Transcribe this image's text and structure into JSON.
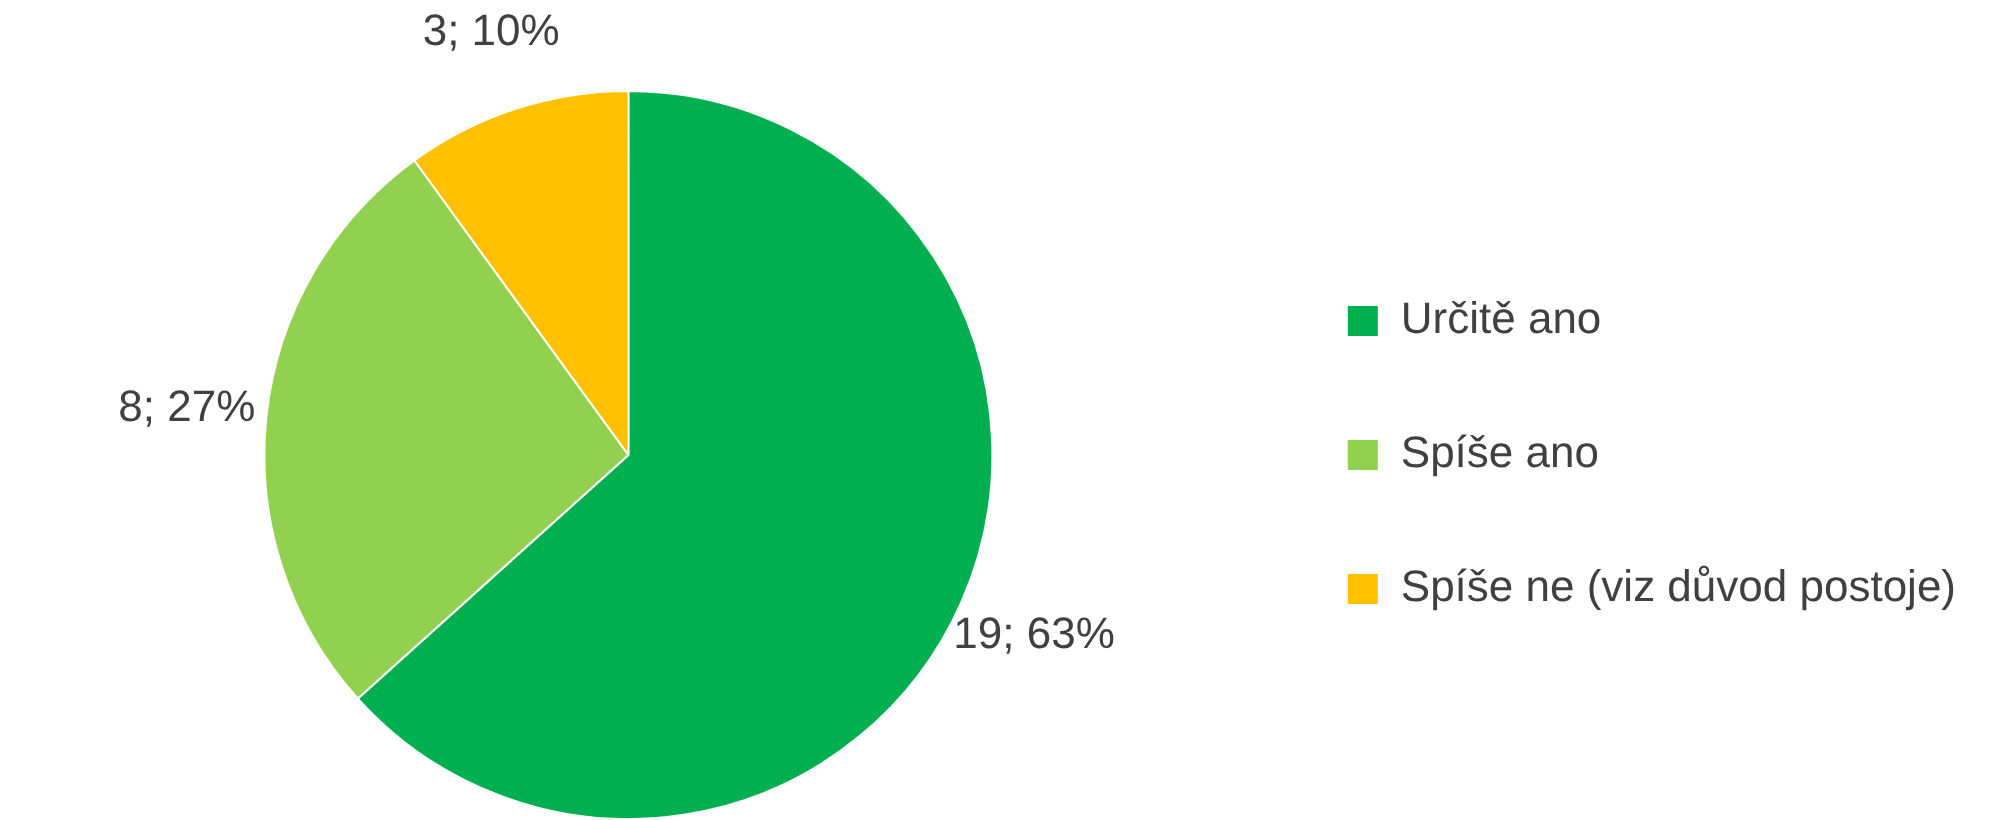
{
  "chart_data": {
    "type": "pie",
    "categories": [
      "Určitě ano",
      "Spíše ano",
      "Spíše ne (viz důvod postoje)"
    ],
    "values": [
      19,
      8,
      3
    ],
    "colors": [
      "#00b050",
      "#92d050",
      "#ffc000"
    ],
    "value_labels": [
      "19; 63%",
      "8; 27%",
      "3; 10%"
    ],
    "legend": "right"
  }
}
